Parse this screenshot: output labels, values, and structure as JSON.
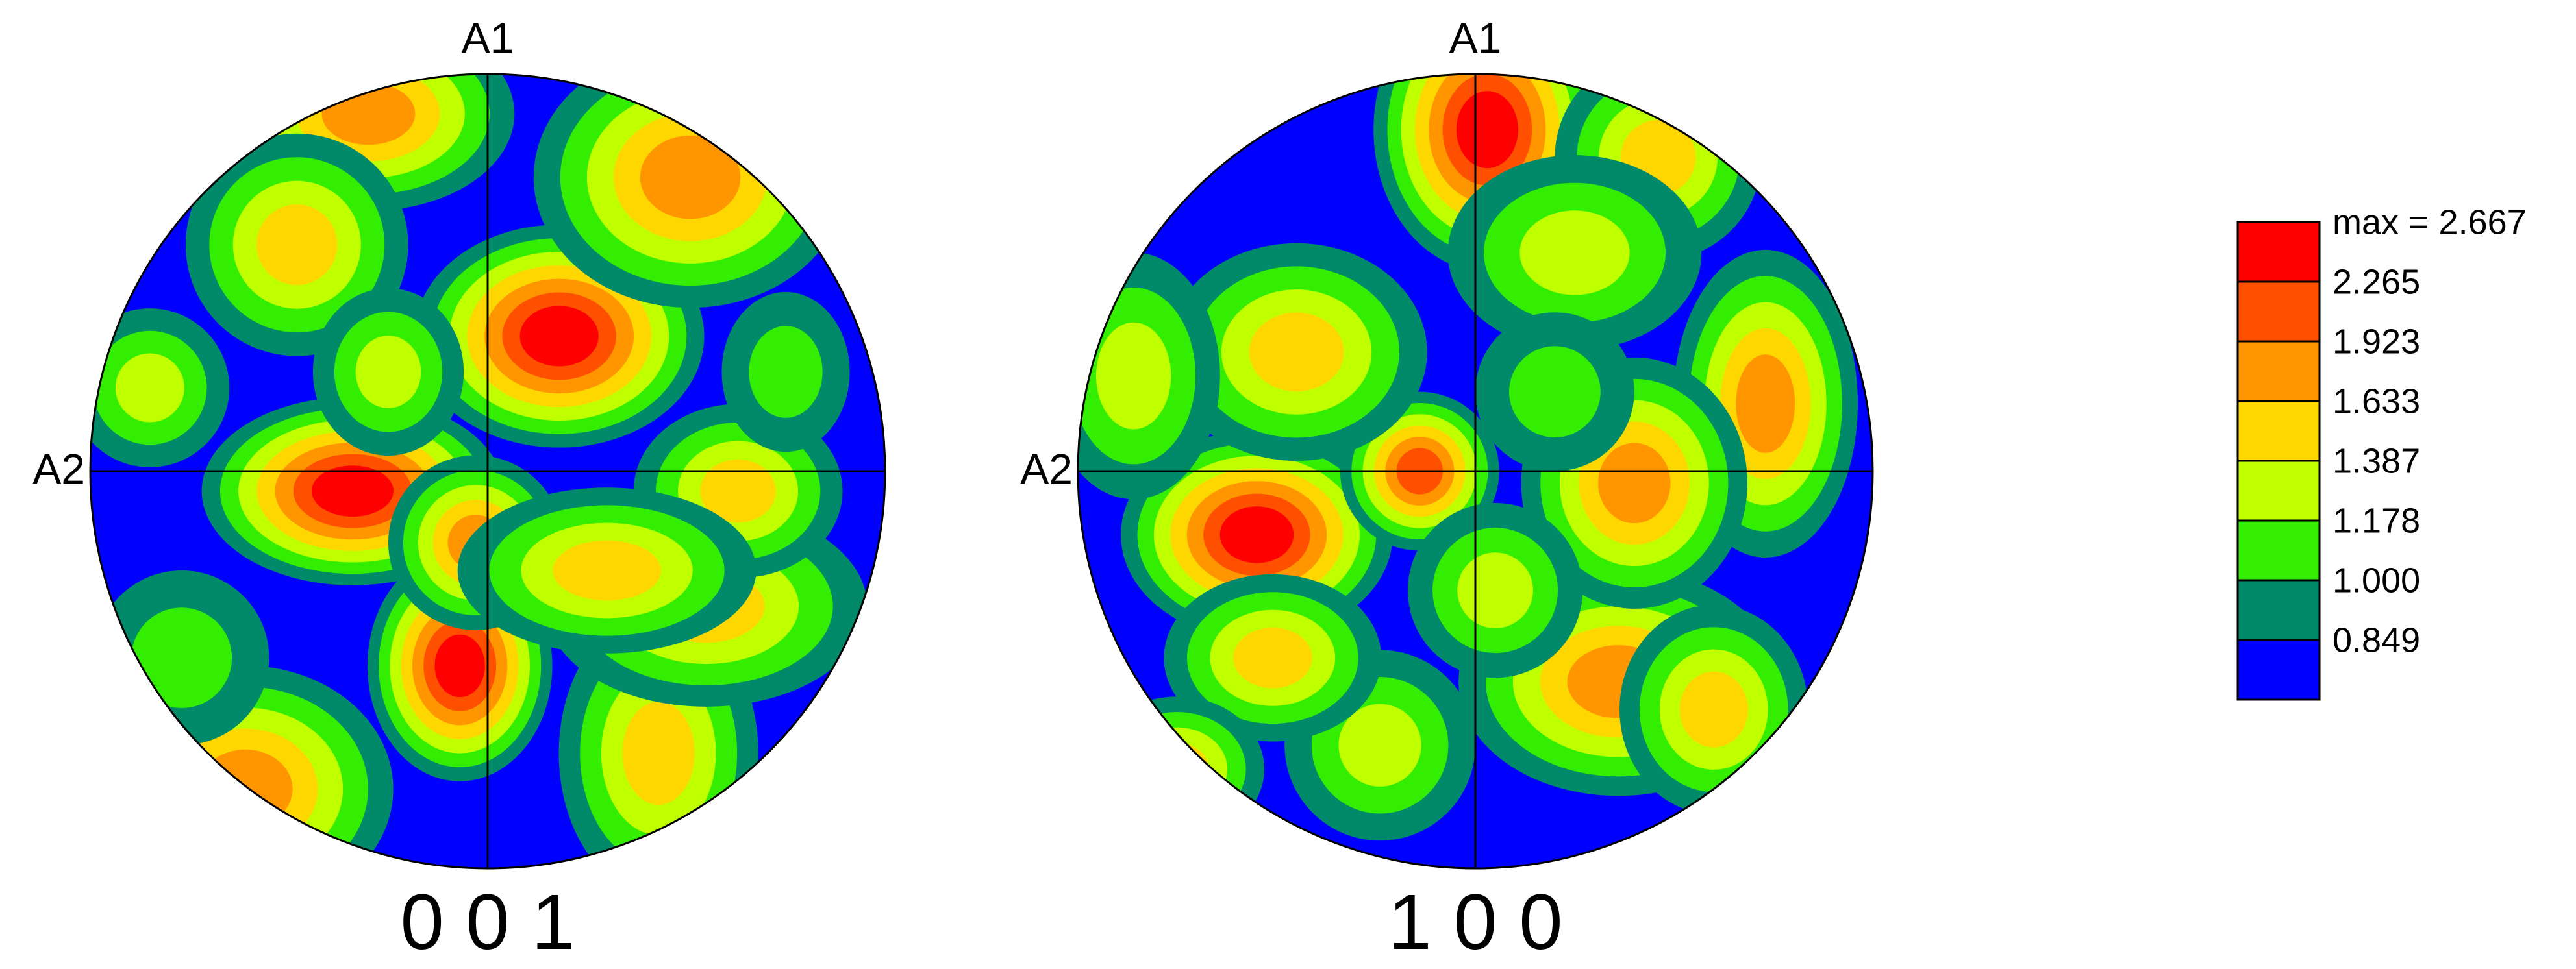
{
  "figures": [
    {
      "title": "0 0 1",
      "axis_top": "A1",
      "axis_left": "A2"
    },
    {
      "title": "1 0 0",
      "axis_top": "A1",
      "axis_left": "A2"
    }
  ],
  "legend": {
    "levels": [
      {
        "value": 2.667,
        "label": "max = 2.667"
      },
      2.265,
      1.923,
      1.633,
      1.387,
      1.178,
      1.0,
      0.849
    ],
    "colors": [
      "#ff0000",
      "#ff5000",
      "#ff9600",
      "#ffd700",
      "#c0ff00",
      "#33ee00",
      "#008a6a",
      "#0000ff"
    ]
  }
}
